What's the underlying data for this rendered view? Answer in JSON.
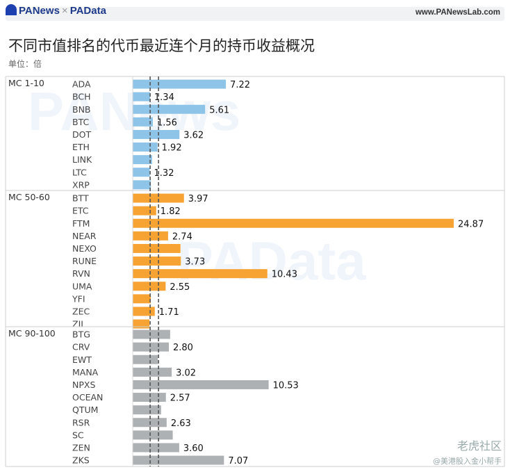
{
  "header": {
    "brand_left": "PANews",
    "brand_sep": "×",
    "brand_right": "PAData",
    "site": "www.PANewsLab.com"
  },
  "title": "不同市值排名的代币最近连个月的持币收益概况",
  "unit_label": "单位：倍",
  "watermarks": {
    "w1": "PANews",
    "w2": "PAData"
  },
  "footer": {
    "community": "老虎社区",
    "handle": "@美港股入金小帮手"
  },
  "colors": {
    "group1": "#8ec4e8",
    "group2": "#f7a334",
    "group3": "#aeb1b4"
  },
  "chart_data": {
    "type": "bar",
    "orientation": "horizontal",
    "xlim": [
      0,
      25
    ],
    "reference_lines": [
      1.35,
      2.0
    ],
    "groups": [
      {
        "name": "MC 1-10",
        "color": "#8ec4e8",
        "categories": [
          "ADA",
          "BCH",
          "BNB",
          "BTC",
          "DOT",
          "ETH",
          "LINK",
          "LTC",
          "XRP"
        ],
        "values": [
          7.22,
          1.34,
          5.61,
          1.56,
          3.62,
          1.92,
          1.5,
          1.32,
          1.4
        ],
        "labels": [
          "7.22",
          "1.34",
          "5.61",
          "1.56",
          "3.62",
          "1.92",
          "",
          "1.32",
          ""
        ]
      },
      {
        "name": "MC 50-60",
        "color": "#f7a334",
        "categories": [
          "BTT",
          "ETC",
          "FTM",
          "NEAR",
          "NEXO",
          "RUNE",
          "RVN",
          "UMA",
          "YFI",
          "ZEC",
          "ZIL"
        ],
        "values": [
          3.97,
          1.82,
          24.87,
          2.74,
          3.7,
          3.73,
          10.43,
          2.55,
          1.4,
          1.71,
          1.3
        ],
        "labels": [
          "3.97",
          "1.82",
          "24.87",
          "2.74",
          "",
          "3.73",
          "10.43",
          "2.55",
          "",
          "1.71",
          ""
        ]
      },
      {
        "name": "MC 90-100",
        "color": "#aeb1b4",
        "categories": [
          "BTG",
          "CRV",
          "EWT",
          "MANA",
          "NPXS",
          "OCEAN",
          "QTUM",
          "RSR",
          "SC",
          "ZEN",
          "ZKS"
        ],
        "values": [
          2.9,
          2.8,
          1.95,
          3.02,
          10.53,
          2.57,
          2.2,
          2.63,
          3.1,
          3.6,
          7.07
        ],
        "labels": [
          "",
          "2.80",
          "",
          "3.02",
          "10.53",
          "2.57",
          "",
          "2.63",
          "",
          "3.60",
          "7.07"
        ]
      }
    ]
  }
}
